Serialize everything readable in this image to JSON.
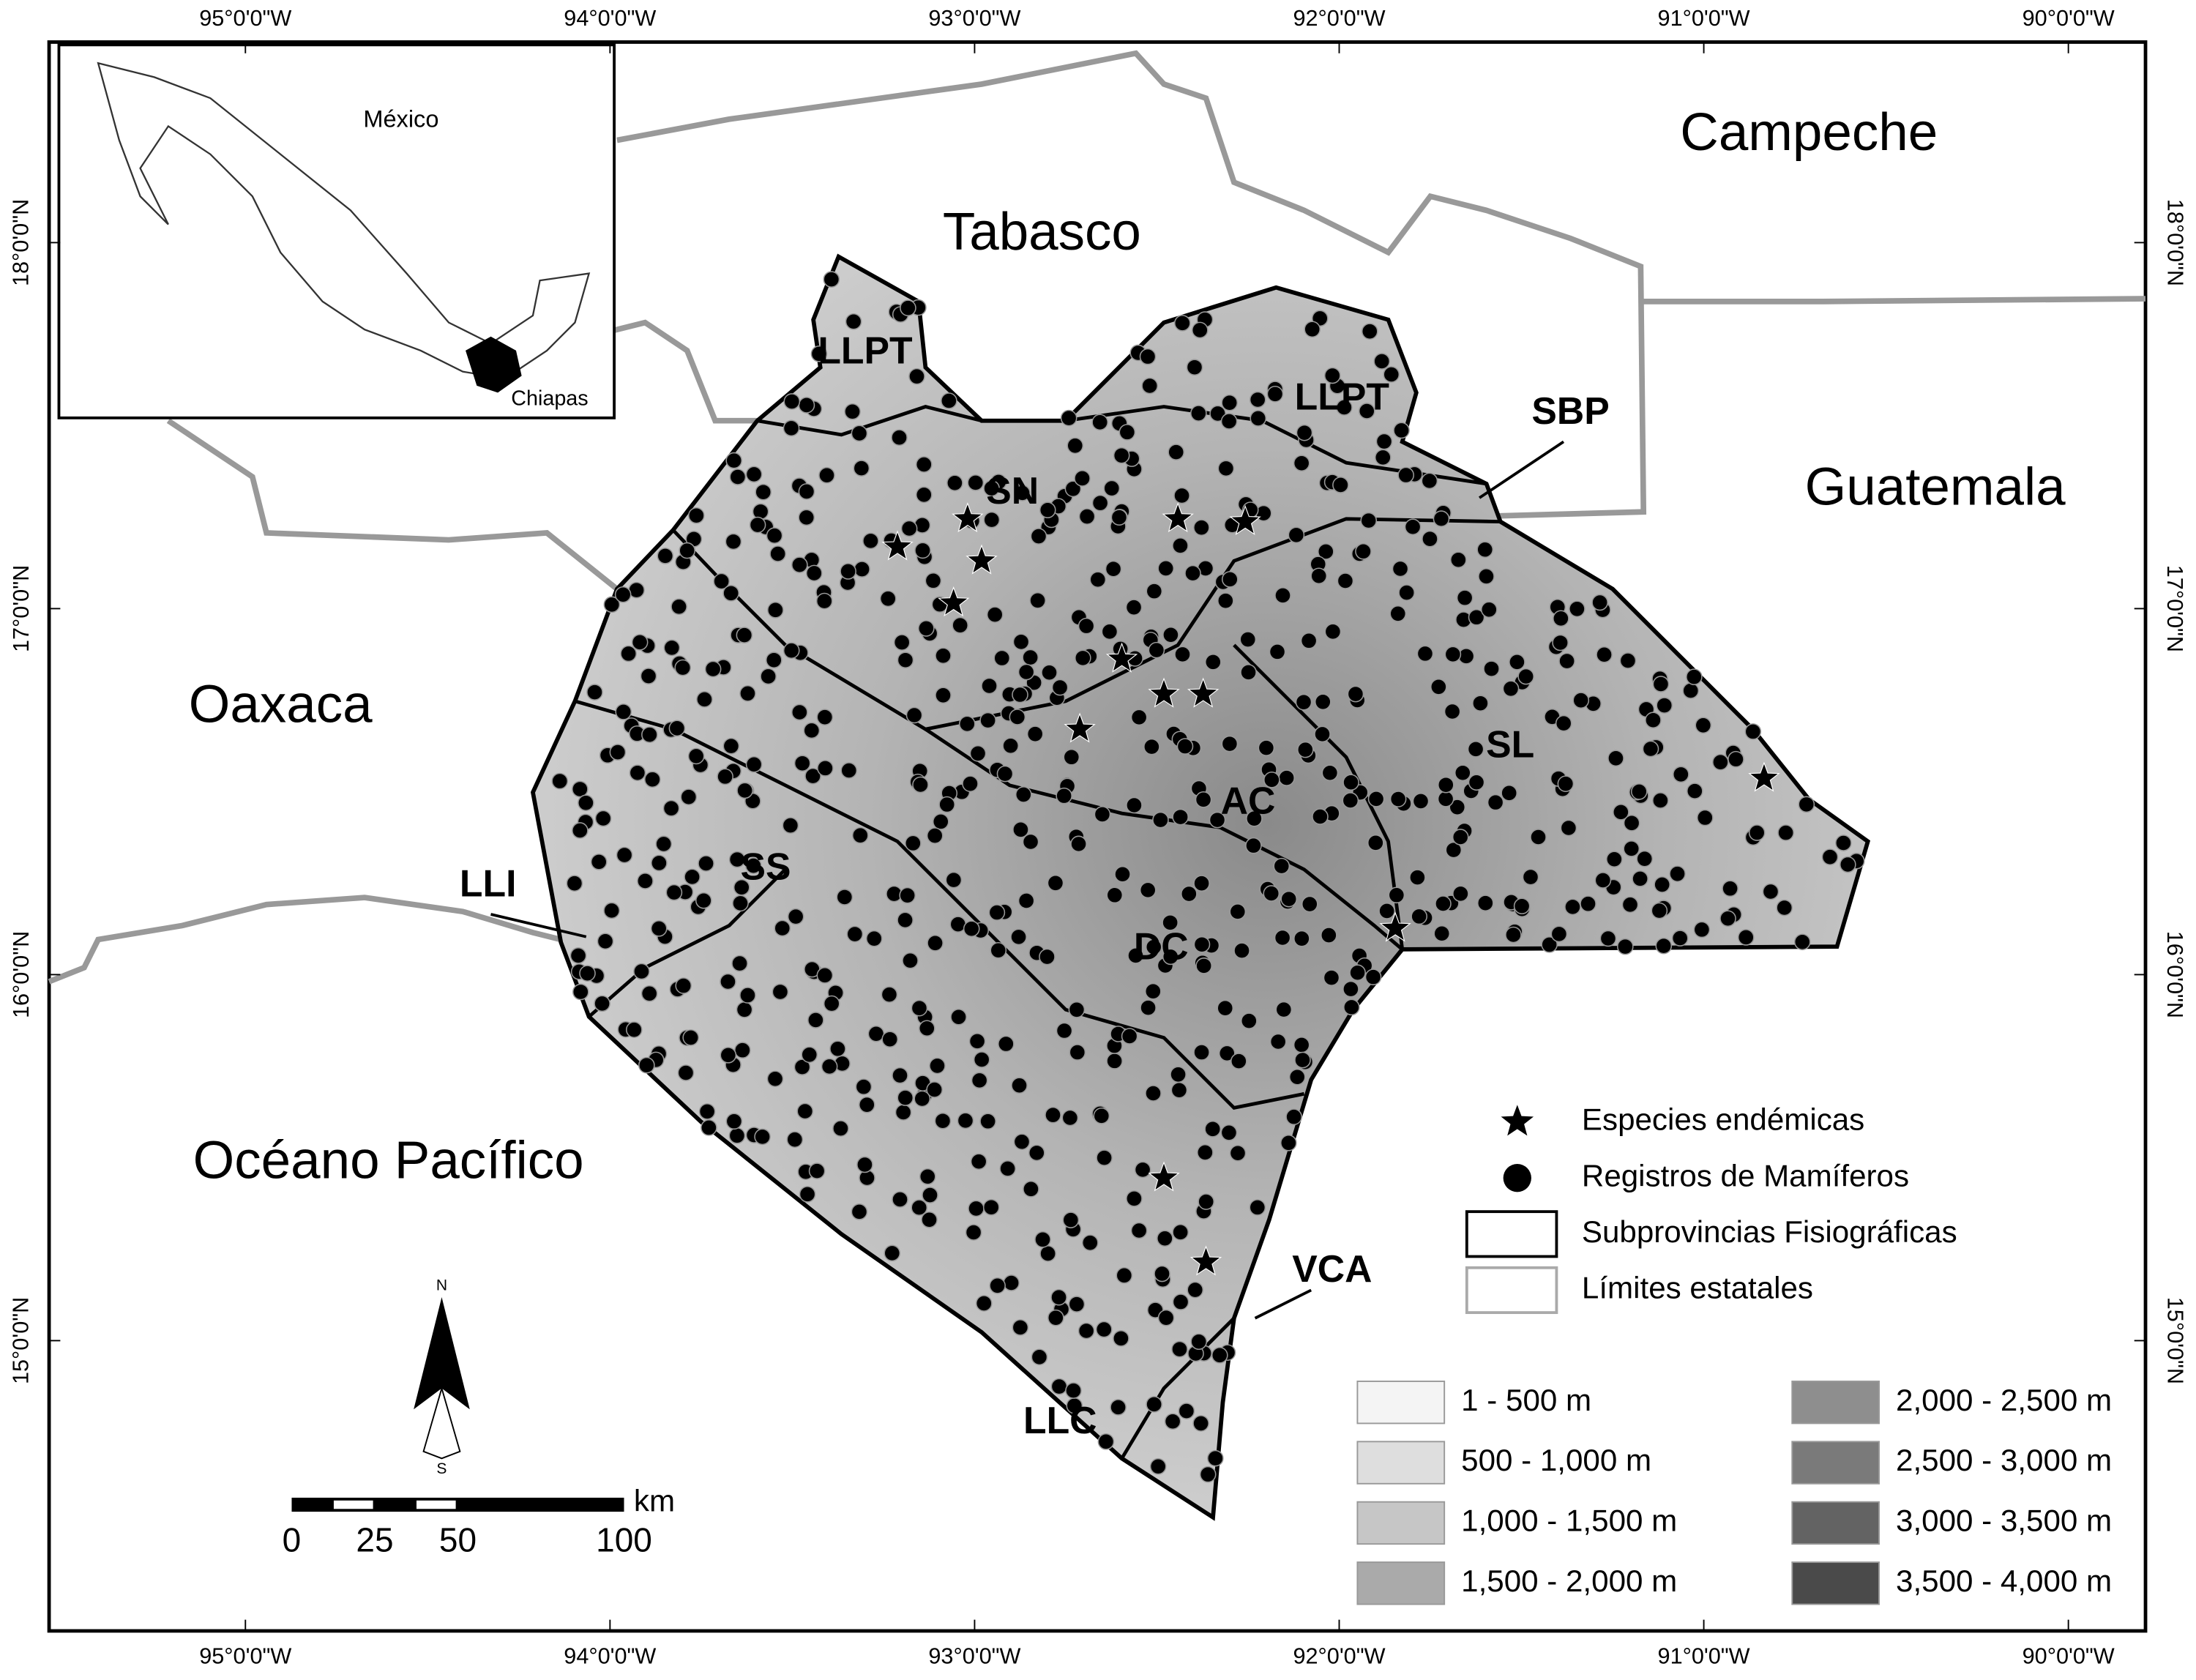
{
  "map": {
    "lon_ticks": [
      "95°0'0\"W",
      "94°0'0\"W",
      "93°0'0\"W",
      "92°0'0\"W",
      "91°0'0\"W",
      "90°0'0\"W"
    ],
    "lat_ticks": [
      "18°0'0\"N",
      "17°0'0\"N",
      "16°0'0\"N",
      "15°0'0\"N"
    ],
    "place_labels": [
      "Campeche",
      "Tabasco",
      "Guatemala",
      "Oaxaca",
      "Océano Pacífico"
    ],
    "subprovince_labels": [
      "LLPT",
      "LLPT",
      "SBP",
      "SN",
      "SL",
      "AC",
      "SS",
      "LLI",
      "DC",
      "VCA",
      "LLC"
    ],
    "inset": {
      "country": "México",
      "state": "Chiapas"
    },
    "north_arrow": {
      "north": "N",
      "south": "S"
    },
    "scale_bar": {
      "ticks": [
        0,
        25,
        50,
        100
      ],
      "unit": "km"
    },
    "legend": [
      {
        "label": "Especies endémicas",
        "symbol": "star"
      },
      {
        "label": "Registros de Mamíferos",
        "symbol": "dot"
      },
      {
        "label": "Subprovincias Fisiográficas",
        "symbol": "black-box"
      },
      {
        "label": "Límites estatales",
        "symbol": "grey-box"
      }
    ],
    "elevation_legend": [
      {
        "label": "1 - 500 m",
        "color": "#f4f4f4"
      },
      {
        "label": "500 - 1,000 m",
        "color": "#dedede"
      },
      {
        "label": "1,000 - 1,500 m",
        "color": "#c6c6c6"
      },
      {
        "label": "1,500 - 2,000 m",
        "color": "#aaaaaa"
      },
      {
        "label": "2,000 - 2,500 m",
        "color": "#8e8e8e"
      },
      {
        "label": "2,500 - 3,000 m",
        "color": "#7a7a7a"
      },
      {
        "label": "3,000 - 3,500 m",
        "color": "#636363"
      },
      {
        "label": "3,500 - 4,000 m",
        "color": "#4a4a4a"
      }
    ]
  }
}
